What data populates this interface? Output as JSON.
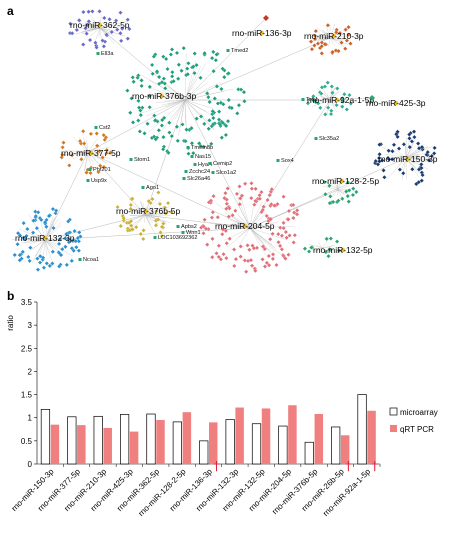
{
  "panels": {
    "a": "a",
    "b": "b"
  },
  "network": {
    "clusters": [
      {
        "id": "miR-362",
        "label": "rno-miR-362-5p",
        "color": "#6a6ac8"
      },
      {
        "id": "miR-136",
        "label": "rno-miR-136-3p",
        "color": "#c0392b"
      },
      {
        "id": "miR-210",
        "label": "rno-miR-210-3p",
        "color": "#c8622a"
      },
      {
        "id": "miR-376b3",
        "label": "rno-miR-376b-3p",
        "color": "#1f9e7a"
      },
      {
        "id": "miR-92a",
        "label": "rno-miR-92a-1-5p",
        "color": "#2fae8e"
      },
      {
        "id": "miR-425",
        "label": "rno-miR-425-3p",
        "color": "#2aa36e"
      },
      {
        "id": "miR-377",
        "label": "rno-miR-377-5p",
        "color": "#d07a22"
      },
      {
        "id": "miR-150",
        "label": "rno-miR-150-3p",
        "color": "#1b3c6e"
      },
      {
        "id": "miR-128",
        "label": "rno-miR-128-2-5p",
        "color": "#2aa36e"
      },
      {
        "id": "miR-376b5",
        "label": "rno-miR-376b-5p",
        "color": "#c9b13a"
      },
      {
        "id": "miR-204",
        "label": "rno-miR-204-5p",
        "color": "#e0707a"
      },
      {
        "id": "miR-132-3p",
        "label": "rno-miR-132-3p",
        "color": "#2a8fd0"
      },
      {
        "id": "miR-132-5p",
        "label": "rno-miR-132-5p",
        "color": "#2aa36e"
      }
    ],
    "genes": [
      "Ell3a",
      "Tmed2",
      "Tob1",
      "Slc35a2",
      "Cst2",
      "Phf201",
      "Usp9x",
      "Stom1",
      "Ago1",
      "Tmem8b",
      "Nas15",
      "Hyal4",
      "Zcchc24",
      "Slc26a46",
      "Cemip2",
      "Slco1a2",
      "Sox4",
      "Apbs2",
      "Wnn1",
      "LOC103692362",
      "Ncoa1"
    ]
  },
  "chart_data": {
    "type": "bar",
    "ylabel": "ratio",
    "ylim": [
      0,
      3.5
    ],
    "yticks": [
      0,
      0.5,
      1,
      1.5,
      2,
      2.5,
      3,
      3.5
    ],
    "categories": [
      "rno-miR-150-3p",
      "rno-miR-377-5p",
      "rno-miR-210-3p",
      "rno-miR-425-3p",
      "rno-miR-362-5p",
      "rno-miR-128-2-5p",
      "rno-miR-136-3p",
      "rno-miR-132-3p",
      "rno-miR-132-5p",
      "rno-miR-204-5p",
      "rno-miR-376b-5p",
      "rno-miR-26b-5p",
      "rno-miR-92a-1-5p"
    ],
    "series": [
      {
        "name": "microarray",
        "color": "#ffffff",
        "values": [
          1.18,
          1.02,
          1.03,
          1.07,
          1.08,
          0.91,
          0.5,
          0.96,
          0.87,
          0.82,
          0.47,
          0.8,
          1.5
        ]
      },
      {
        "name": "qRT PCR",
        "color": "#f08080",
        "values": [
          0.85,
          0.84,
          0.78,
          0.7,
          0.95,
          1.12,
          0.9,
          1.22,
          1.2,
          1.27,
          1.08,
          0.62,
          1.15
        ]
      }
    ],
    "marker": "†",
    "marked_categories": [
      "rno-miR-136-3p",
      "rno-miR-26b-5p",
      "rno-miR-92a-1-5p"
    ],
    "legend_position": "right",
    "grid": false
  }
}
